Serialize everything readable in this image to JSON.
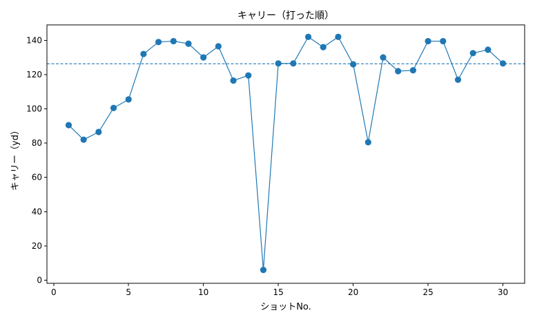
{
  "chart_data": {
    "type": "line",
    "title": "キャリー（打った順）",
    "xlabel": "ショットNo.",
    "ylabel": "キャリー（yd）",
    "xlim": [
      -0.45,
      31.45
    ],
    "ylim": [
      -1.8,
      149.0
    ],
    "xticks": [
      0,
      5,
      10,
      15,
      20,
      25,
      30
    ],
    "yticks": [
      0,
      20,
      40,
      60,
      80,
      100,
      120,
      140
    ],
    "grid": false,
    "series": [
      {
        "x": [
          1,
          2,
          3,
          4,
          5,
          6,
          7,
          8,
          9,
          10,
          11,
          12,
          13,
          14,
          15,
          16,
          17,
          18,
          19,
          20,
          21,
          22,
          23,
          24,
          25,
          26,
          27,
          28,
          29,
          30
        ],
        "values": [
          90.5,
          82.0,
          86.5,
          100.5,
          105.5,
          132.0,
          139.0,
          139.5,
          138.0,
          130.0,
          136.5,
          116.5,
          119.5,
          6.0,
          126.5,
          126.5,
          142.0,
          136.0,
          142.0,
          126.0,
          80.5,
          130.0,
          122.0,
          122.5,
          139.5,
          139.5,
          117.0,
          132.5,
          134.5,
          126.5
        ],
        "color": "#1f77b4",
        "marker": "circle"
      }
    ],
    "reference_line": {
      "y": 126.3,
      "color": "#1f77b4",
      "style": "dashed"
    }
  }
}
